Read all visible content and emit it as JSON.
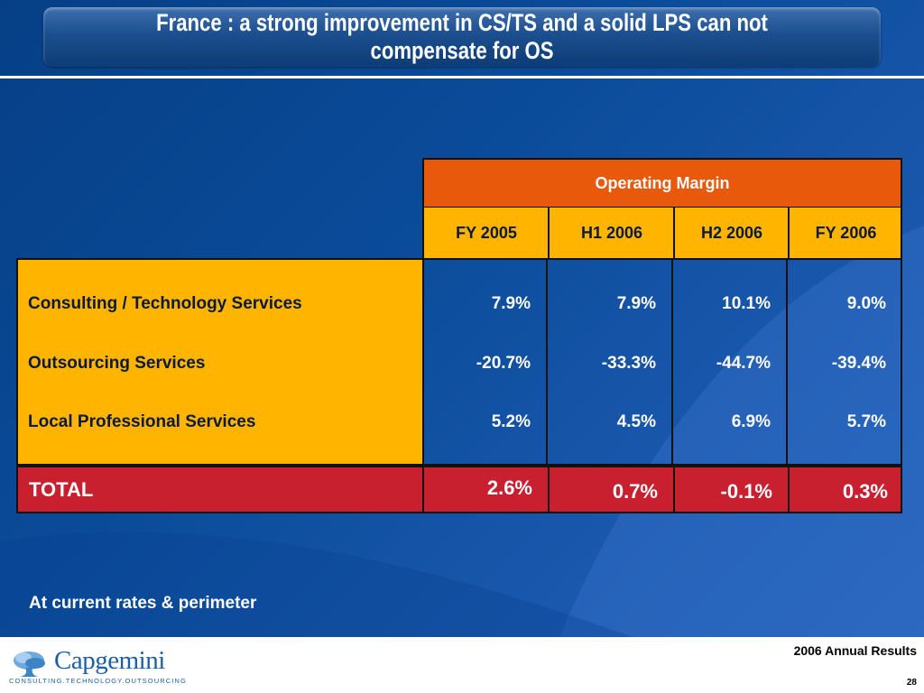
{
  "slide": {
    "title_line1": "France : a strong improvement in CS/TS and a solid LPS can not",
    "title_line2": "compensate for OS"
  },
  "table": {
    "group_header": "Operating Margin",
    "columns": [
      "FY 2005",
      "H1 2006",
      "H2 2006",
      "FY 2006"
    ],
    "rows": [
      {
        "label": "Consulting / Technology Services",
        "values": [
          "7.9%",
          "7.9%",
          "10.1%",
          "9.0%"
        ]
      },
      {
        "label": "Outsourcing Services",
        "values": [
          "-20.7%",
          "-33.3%",
          "-44.7%",
          "-39.4%"
        ]
      },
      {
        "label": "Local Professional Services",
        "values": [
          "5.2%",
          "4.5%",
          "6.9%",
          "5.7%"
        ]
      }
    ],
    "total": {
      "label": "TOTAL",
      "values": [
        "2.6%",
        "0.7%",
        "-0.1%",
        "0.3%"
      ]
    }
  },
  "footnote": "At current rates & perimeter",
  "footer": {
    "brand": "Capgemini",
    "tagline": "CONSULTING.TECHNOLOGY.OUTSOURCING",
    "report_title": "2006 Annual Results",
    "page_number": "28"
  },
  "colors": {
    "background": "#0a4b99",
    "orange_header": "#e8590c",
    "amber": "#ffb400",
    "total_red": "#c8202f",
    "brand_blue": "#1b5fa8"
  },
  "icons": {
    "logo": "capgemini-spade-logo"
  }
}
